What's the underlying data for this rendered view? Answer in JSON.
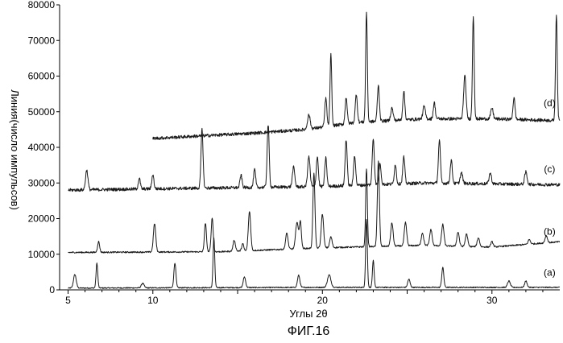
{
  "chart_data": {
    "type": "line",
    "title": "",
    "xlabel": "Углы 2θ",
    "ylabel": "Линия(число импульсов)",
    "caption": "ФИГ.16",
    "xlim": [
      4.5,
      34
    ],
    "ylim": [
      0,
      80000
    ],
    "xticks": [
      5,
      10,
      20,
      30
    ],
    "yticks": [
      0,
      10000,
      20000,
      30000,
      40000,
      50000,
      60000,
      70000,
      80000
    ],
    "grid": false,
    "legend": "none",
    "series": [
      {
        "label": "(a)",
        "label_at": [
          33.4,
          4000
        ],
        "x_start": 5.0,
        "x_end": 34.0,
        "baseline": [
          [
            5,
            500
          ],
          [
            20,
            700
          ],
          [
            34,
            700
          ]
        ],
        "peaks": [
          [
            5.4,
            3800,
            0.08
          ],
          [
            6.7,
            7000,
            0.05
          ],
          [
            9.4,
            1300,
            0.08
          ],
          [
            11.3,
            7000,
            0.06
          ],
          [
            13.6,
            14000,
            0.05
          ],
          [
            15.4,
            3000,
            0.07
          ],
          [
            18.6,
            3400,
            0.07
          ],
          [
            20.4,
            3500,
            0.1
          ],
          [
            22.6,
            19000,
            0.05
          ],
          [
            23.0,
            7500,
            0.05
          ],
          [
            25.1,
            2300,
            0.07
          ],
          [
            27.1,
            5600,
            0.06
          ],
          [
            31.0,
            1800,
            0.08
          ],
          [
            32.0,
            1800,
            0.07
          ]
        ]
      },
      {
        "label": "(b)",
        "label_at": [
          33.4,
          15500
        ],
        "x_start": 5.0,
        "x_end": 34.0,
        "baseline": [
          [
            5,
            10500
          ],
          [
            14,
            10700
          ],
          [
            20,
            11800
          ],
          [
            26,
            12500
          ],
          [
            30,
            12000
          ],
          [
            34,
            13500
          ]
        ],
        "peaks": [
          [
            6.8,
            3000,
            0.06
          ],
          [
            10.1,
            8000,
            0.07
          ],
          [
            13.1,
            8000,
            0.06
          ],
          [
            13.5,
            9500,
            0.06
          ],
          [
            14.8,
            3000,
            0.07
          ],
          [
            15.3,
            2000,
            0.06
          ],
          [
            15.7,
            11000,
            0.07
          ],
          [
            17.9,
            4500,
            0.07
          ],
          [
            18.5,
            7500,
            0.08
          ],
          [
            18.7,
            7500,
            0.06
          ],
          [
            19.5,
            21000,
            0.06
          ],
          [
            20.0,
            9500,
            0.07
          ],
          [
            20.5,
            3000,
            0.07
          ],
          [
            22.6,
            22000,
            0.05
          ],
          [
            23.3,
            24000,
            0.06
          ],
          [
            24.1,
            6500,
            0.07
          ],
          [
            24.9,
            6500,
            0.07
          ],
          [
            25.9,
            3500,
            0.07
          ],
          [
            26.4,
            4500,
            0.07
          ],
          [
            27.1,
            6000,
            0.07
          ],
          [
            28.0,
            4000,
            0.07
          ],
          [
            28.5,
            3500,
            0.07
          ],
          [
            29.2,
            2500,
            0.07
          ],
          [
            30.0,
            1500,
            0.07
          ],
          [
            32.2,
            1300,
            0.07
          ],
          [
            33.2,
            2000,
            0.07
          ]
        ]
      },
      {
        "label": "(c)",
        "label_at": [
          33.4,
          33000
        ],
        "x_start": 5.0,
        "x_end": 34.0,
        "baseline": [
          [
            5,
            28000
          ],
          [
            12,
            28500
          ],
          [
            20,
            29000
          ],
          [
            26,
            30000
          ],
          [
            34,
            29500
          ]
        ],
        "peaks": [
          [
            6.1,
            5500,
            0.07
          ],
          [
            9.2,
            3000,
            0.06
          ],
          [
            10.0,
            4000,
            0.06
          ],
          [
            12.9,
            16500,
            0.06
          ],
          [
            15.2,
            3500,
            0.06
          ],
          [
            16.0,
            5000,
            0.06
          ],
          [
            16.8,
            17500,
            0.06
          ],
          [
            18.3,
            5500,
            0.07
          ],
          [
            19.2,
            8500,
            0.07
          ],
          [
            19.7,
            8500,
            0.06
          ],
          [
            20.2,
            8000,
            0.06
          ],
          [
            21.4,
            13000,
            0.06
          ],
          [
            21.9,
            8500,
            0.06
          ],
          [
            23.0,
            13000,
            0.06
          ],
          [
            23.4,
            6000,
            0.06
          ],
          [
            24.3,
            5500,
            0.06
          ],
          [
            24.8,
            7500,
            0.06
          ],
          [
            26.9,
            12000,
            0.06
          ],
          [
            27.6,
            6500,
            0.06
          ],
          [
            28.2,
            3000,
            0.07
          ],
          [
            29.9,
            3000,
            0.07
          ],
          [
            32.0,
            3500,
            0.07
          ]
        ]
      },
      {
        "label": "(d)",
        "label_at": [
          33.4,
          51500
        ],
        "x_start": 10.0,
        "x_end": 34.0,
        "baseline": [
          [
            10,
            42500
          ],
          [
            16,
            44000
          ],
          [
            19,
            45000
          ],
          [
            22,
            47000
          ],
          [
            26,
            48000
          ],
          [
            30,
            48000
          ],
          [
            34,
            47500
          ]
        ],
        "peaks": [
          [
            19.2,
            4000,
            0.08
          ],
          [
            20.2,
            8000,
            0.06
          ],
          [
            20.5,
            20000,
            0.05
          ],
          [
            21.4,
            7500,
            0.06
          ],
          [
            22.0,
            8000,
            0.06
          ],
          [
            22.6,
            31000,
            0.05
          ],
          [
            23.3,
            10000,
            0.06
          ],
          [
            24.1,
            3500,
            0.07
          ],
          [
            24.8,
            8000,
            0.06
          ],
          [
            26.0,
            3500,
            0.07
          ],
          [
            26.6,
            4500,
            0.06
          ],
          [
            28.4,
            12000,
            0.07
          ],
          [
            28.9,
            29000,
            0.05
          ],
          [
            30.0,
            3000,
            0.07
          ],
          [
            31.3,
            6000,
            0.06
          ],
          [
            33.8,
            30000,
            0.05
          ]
        ]
      }
    ]
  }
}
